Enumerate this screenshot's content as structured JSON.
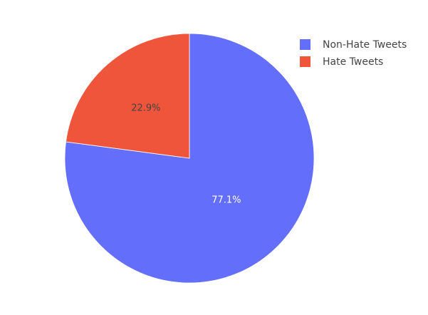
{
  "chart_data": {
    "type": "pie",
    "categories": [
      "Non-Hate Tweets",
      "Hate Tweets"
    ],
    "values": [
      77.1,
      22.9
    ],
    "value_unit": "%",
    "colors": [
      "#636efa",
      "#ef553b"
    ],
    "slice_label_colors": [
      "#ffffff",
      "#444444"
    ],
    "title": "",
    "legend": {
      "position": "top-right",
      "entries": [
        "Non-Hate Tweets",
        "Hate Tweets"
      ]
    },
    "slice_labels": [
      "77.1%",
      "22.9%"
    ],
    "direction": "clockwise",
    "start": "top"
  }
}
